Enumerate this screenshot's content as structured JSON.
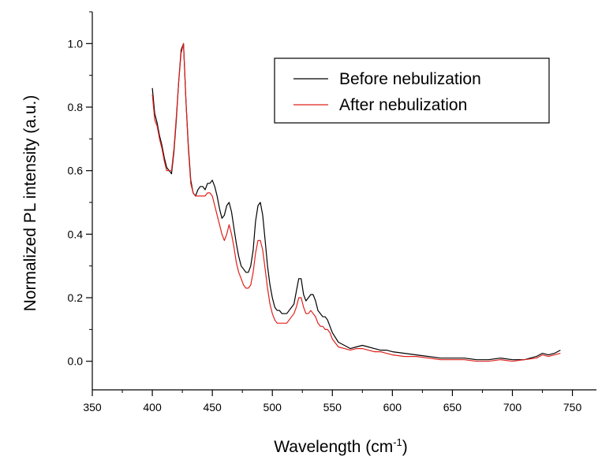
{
  "chart_data": {
    "type": "line",
    "title": "",
    "xlabel": "Wavelength (cm",
    "xlabel_sup": "-1",
    "xlabel_close": ")",
    "ylabel": "Normalized PL intensity (a.u.)",
    "xlim": [
      350,
      770
    ],
    "ylim": [
      -0.09,
      1.1
    ],
    "x_ticks": [
      350,
      400,
      450,
      500,
      550,
      600,
      650,
      700,
      750
    ],
    "y_ticks": [
      0.0,
      0.2,
      0.4,
      0.6,
      0.8,
      1.0
    ],
    "x_tick_labels": [
      "350",
      "400",
      "450",
      "500",
      "550",
      "600",
      "650",
      "700",
      "750"
    ],
    "y_tick_labels": [
      "0.0",
      "0.2",
      "0.4",
      "0.6",
      "0.8",
      "1.0"
    ],
    "grid": false,
    "legend_position": "top-right",
    "series": [
      {
        "name": "Before nebulization",
        "color": "#000000",
        "x": [
          400,
          402,
          404,
          406,
          408,
          410,
          412,
          414,
          416,
          418,
          420,
          422,
          424,
          426,
          428,
          430,
          432,
          434,
          436,
          438,
          440,
          442,
          444,
          446,
          448,
          450,
          452,
          454,
          456,
          458,
          460,
          462,
          464,
          466,
          468,
          470,
          472,
          474,
          476,
          478,
          480,
          482,
          484,
          486,
          488,
          490,
          492,
          494,
          496,
          498,
          500,
          502,
          504,
          506,
          508,
          510,
          512,
          514,
          516,
          518,
          520,
          522,
          524,
          526,
          528,
          530,
          532,
          534,
          536,
          538,
          540,
          542,
          544,
          546,
          548,
          550,
          555,
          560,
          565,
          570,
          575,
          580,
          585,
          590,
          595,
          600,
          610,
          620,
          630,
          640,
          650,
          660,
          670,
          680,
          690,
          700,
          710,
          720,
          725,
          730,
          735,
          740
        ],
        "y": [
          0.86,
          0.78,
          0.75,
          0.71,
          0.68,
          0.64,
          0.61,
          0.6,
          0.59,
          0.66,
          0.76,
          0.88,
          0.98,
          1.0,
          0.82,
          0.68,
          0.57,
          0.53,
          0.52,
          0.54,
          0.55,
          0.55,
          0.54,
          0.56,
          0.56,
          0.57,
          0.55,
          0.52,
          0.48,
          0.45,
          0.46,
          0.49,
          0.5,
          0.47,
          0.42,
          0.37,
          0.33,
          0.3,
          0.29,
          0.28,
          0.28,
          0.3,
          0.35,
          0.44,
          0.49,
          0.5,
          0.46,
          0.38,
          0.3,
          0.24,
          0.2,
          0.17,
          0.16,
          0.16,
          0.15,
          0.15,
          0.15,
          0.16,
          0.17,
          0.18,
          0.22,
          0.26,
          0.26,
          0.21,
          0.19,
          0.2,
          0.21,
          0.21,
          0.19,
          0.16,
          0.15,
          0.14,
          0.14,
          0.13,
          0.11,
          0.09,
          0.06,
          0.05,
          0.04,
          0.045,
          0.05,
          0.045,
          0.04,
          0.035,
          0.035,
          0.03,
          0.025,
          0.02,
          0.015,
          0.01,
          0.01,
          0.01,
          0.005,
          0.005,
          0.01,
          0.005,
          0.005,
          0.015,
          0.025,
          0.02,
          0.025,
          0.035
        ]
      },
      {
        "name": "After nebulization",
        "color": "#e0201b",
        "x": [
          400,
          402,
          404,
          406,
          408,
          410,
          412,
          414,
          416,
          418,
          420,
          422,
          424,
          426,
          428,
          430,
          432,
          434,
          436,
          438,
          440,
          442,
          444,
          446,
          448,
          450,
          452,
          454,
          456,
          458,
          460,
          462,
          464,
          466,
          468,
          470,
          472,
          474,
          476,
          478,
          480,
          482,
          484,
          486,
          488,
          490,
          492,
          494,
          496,
          498,
          500,
          502,
          504,
          506,
          508,
          510,
          512,
          514,
          516,
          518,
          520,
          522,
          524,
          526,
          528,
          530,
          532,
          534,
          536,
          538,
          540,
          542,
          544,
          546,
          548,
          550,
          555,
          560,
          565,
          570,
          575,
          580,
          585,
          590,
          595,
          600,
          610,
          620,
          630,
          640,
          650,
          660,
          670,
          680,
          690,
          700,
          710,
          720,
          725,
          730,
          735,
          740
        ],
        "y": [
          0.84,
          0.76,
          0.74,
          0.7,
          0.67,
          0.63,
          0.6,
          0.6,
          0.6,
          0.67,
          0.77,
          0.88,
          0.97,
          1.0,
          0.82,
          0.67,
          0.56,
          0.53,
          0.52,
          0.52,
          0.52,
          0.52,
          0.52,
          0.53,
          0.53,
          0.52,
          0.49,
          0.46,
          0.43,
          0.4,
          0.38,
          0.4,
          0.43,
          0.4,
          0.36,
          0.31,
          0.28,
          0.26,
          0.24,
          0.23,
          0.23,
          0.24,
          0.28,
          0.34,
          0.38,
          0.38,
          0.35,
          0.29,
          0.23,
          0.18,
          0.15,
          0.13,
          0.12,
          0.12,
          0.12,
          0.12,
          0.12,
          0.13,
          0.14,
          0.15,
          0.17,
          0.2,
          0.2,
          0.17,
          0.15,
          0.15,
          0.16,
          0.15,
          0.14,
          0.12,
          0.11,
          0.11,
          0.1,
          0.1,
          0.09,
          0.07,
          0.045,
          0.04,
          0.035,
          0.04,
          0.04,
          0.035,
          0.03,
          0.03,
          0.025,
          0.02,
          0.015,
          0.015,
          0.01,
          0.005,
          0.005,
          0.005,
          0.0,
          0.0,
          0.005,
          0.0,
          0.005,
          0.01,
          0.02,
          0.015,
          0.02,
          0.025
        ]
      }
    ]
  }
}
